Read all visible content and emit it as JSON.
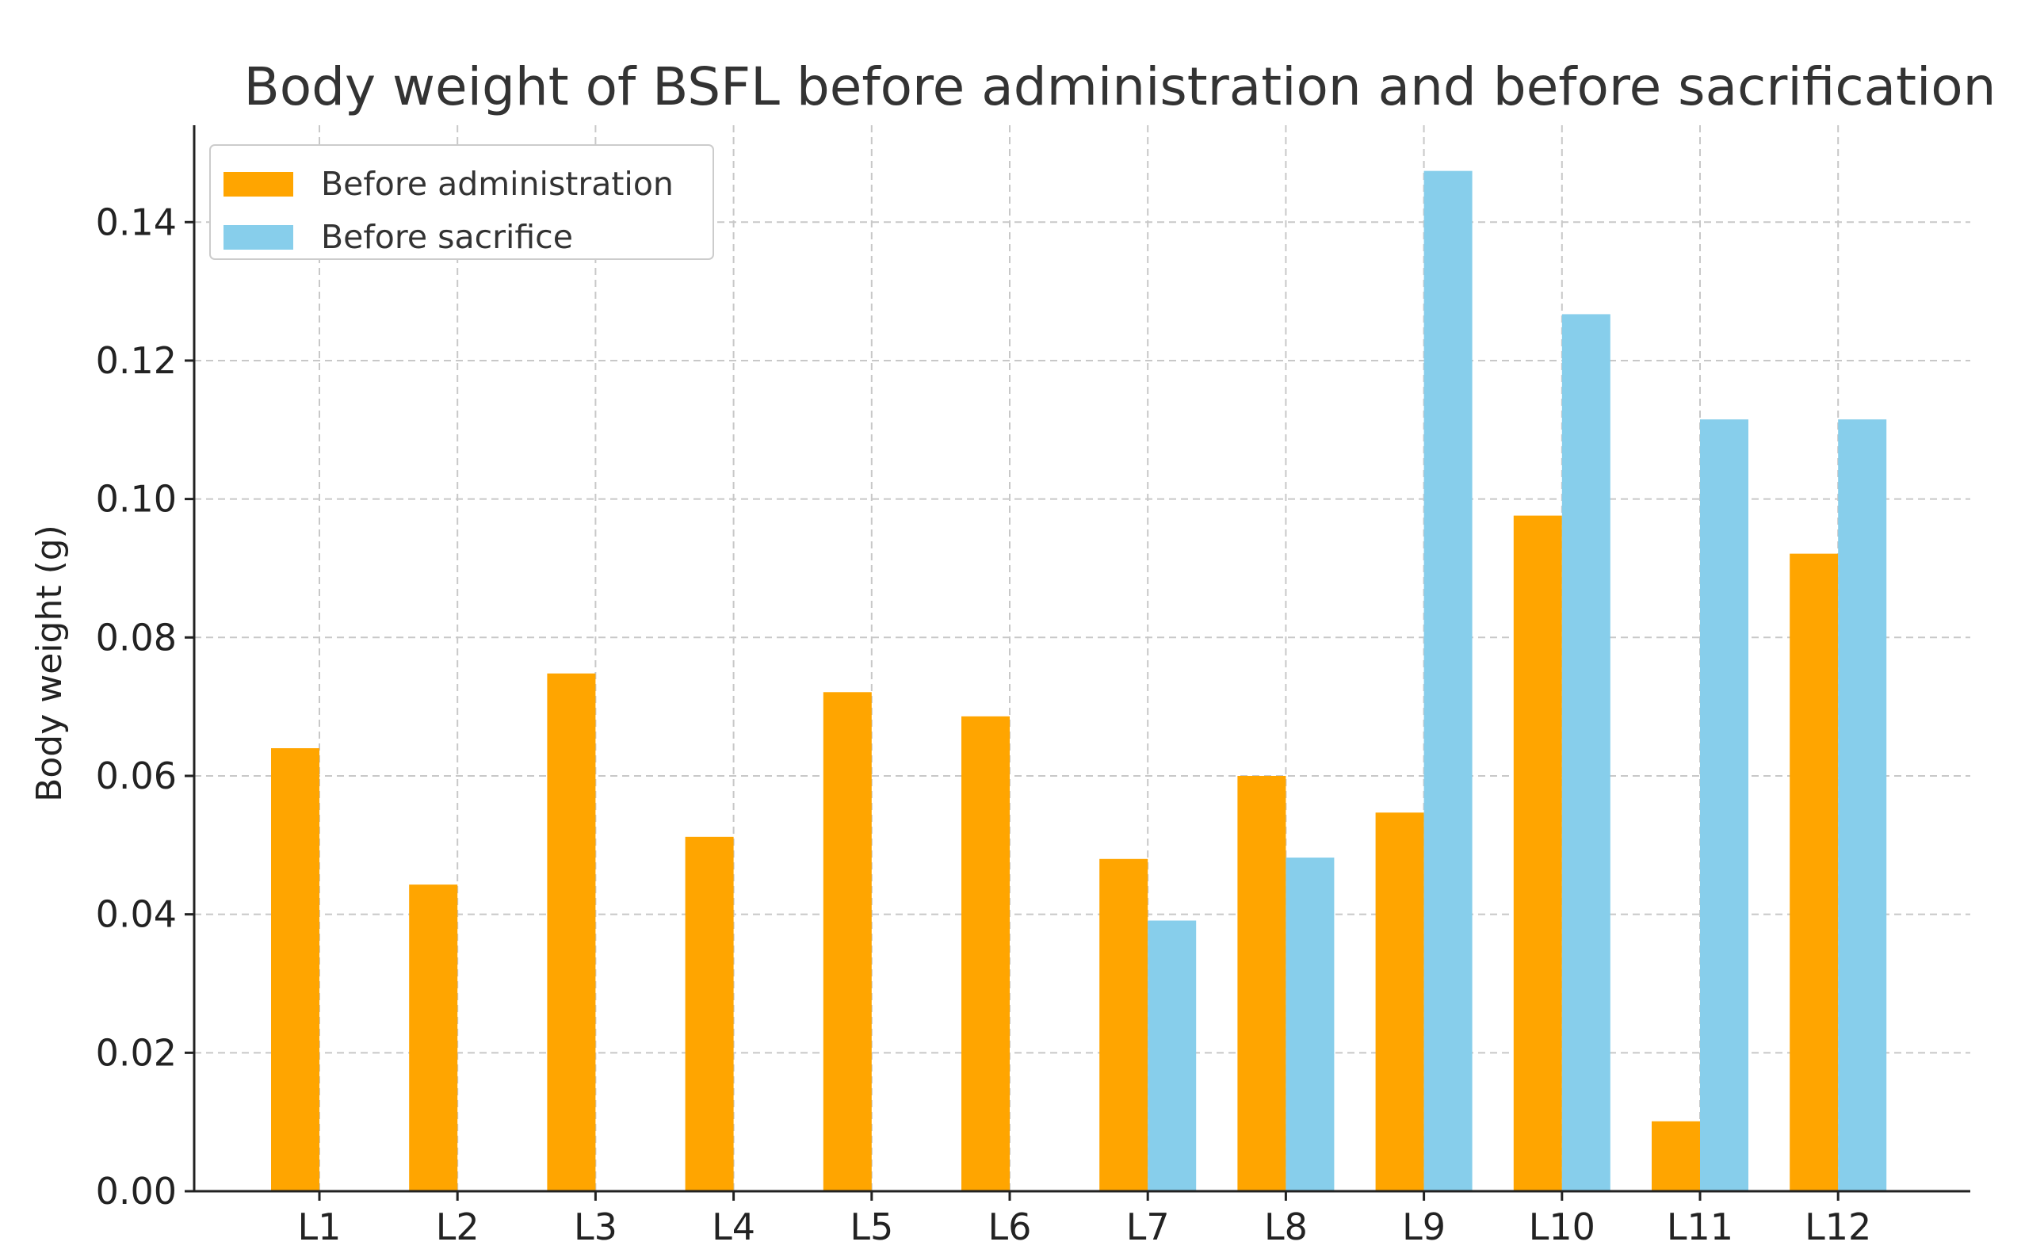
{
  "chart_data": {
    "type": "bar",
    "title": "Body weight of BSFL before administration and before sacrification",
    "xlabel": "",
    "ylabel": "Body weight (g)",
    "categories": [
      "L1",
      "L2",
      "L3",
      "L4",
      "L5",
      "L6",
      "L7",
      "L8",
      "L9",
      "L10",
      "L11",
      "L12"
    ],
    "series": [
      {
        "name": "Before administration",
        "color": "#FFA500",
        "values": [
          0.064,
          0.0443,
          0.0748,
          0.0512,
          0.0721,
          0.0686,
          0.048,
          0.06,
          0.0547,
          0.0976,
          0.0101,
          0.0921
        ]
      },
      {
        "name": "Before sacrifice",
        "color": "#87CEEB",
        "values": [
          null,
          null,
          null,
          null,
          null,
          null,
          0.0391,
          0.0482,
          0.1474,
          0.1267,
          0.1115,
          0.1115
        ]
      }
    ],
    "ylim": [
      0,
      0.154
    ],
    "yticks": [
      0.0,
      0.02,
      0.04,
      0.06,
      0.08,
      0.1,
      0.12,
      0.14
    ],
    "ytick_labels": [
      "0.00",
      "0.02",
      "0.04",
      "0.06",
      "0.08",
      "0.10",
      "0.12",
      "0.14"
    ],
    "grid": true,
    "legend_position": "top-left"
  }
}
